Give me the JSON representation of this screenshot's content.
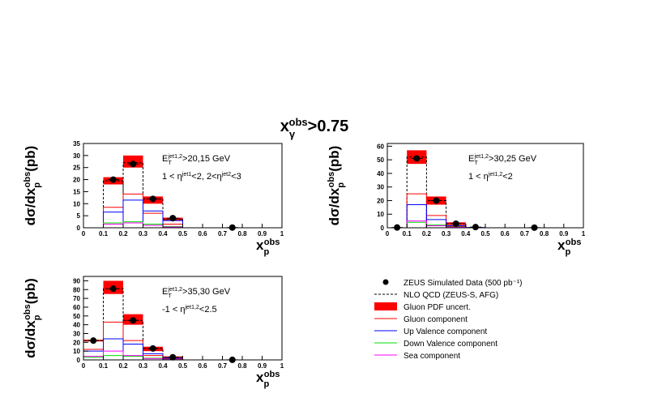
{
  "chart_data": [
    {
      "type": "histogram",
      "title": [
        {
          "text": "x"
        },
        {
          "text": "γ",
          "pos": "sub"
        },
        {
          "text": "obs",
          "pos": "sup"
        },
        {
          "text": ">0.75"
        }
      ],
      "ylabel": [
        {
          "text": "dσ/dx"
        },
        {
          "text": "p",
          "pos": "sub"
        },
        {
          "text": "obs",
          "pos": "sup"
        },
        {
          "text": "(pb)"
        }
      ],
      "xlabel": [
        {
          "text": "x"
        },
        {
          "text": "p",
          "pos": "sub"
        },
        {
          "text": "obs",
          "pos": "sup"
        }
      ],
      "annotations": [
        [
          {
            "text": "E"
          },
          {
            "text": "T",
            "pos": "sub"
          },
          {
            "text": "jet1,2",
            "pos": "sup"
          },
          {
            "text": ">20,15 GeV"
          }
        ],
        [
          {
            "text": "1 < η"
          },
          {
            "text": "jet1",
            "pos": "sup"
          },
          {
            "text": "<2, 2<η"
          },
          {
            "text": "jet2",
            "pos": "sup"
          },
          {
            "text": "<3"
          }
        ]
      ],
      "xlim": [
        0,
        1
      ],
      "xticks": [
        0,
        0.1,
        0.2,
        0.3,
        0.4,
        0.5,
        0.6,
        0.7,
        0.8,
        0.9,
        1
      ],
      "ylim": [
        0,
        35
      ],
      "yticks": [
        0,
        5,
        10,
        15,
        20,
        25,
        30,
        35
      ],
      "bins": [
        0.1,
        0.2,
        0.3,
        0.4,
        0.5
      ],
      "band": {
        "name": "Gluon PDF uncert.",
        "color": "#ff0000",
        "low": [
          18,
          25,
          10,
          3
        ],
        "high": [
          21,
          30,
          13,
          4.2
        ]
      },
      "series": [
        {
          "name": "NLO QCD (ZEUS-S, AFG)",
          "color": "#000000",
          "style": "dashed",
          "values": [
            19.5,
            27,
            12,
            3.6
          ]
        },
        {
          "name": "Gluon component",
          "color": "#ff0000",
          "values": [
            8.5,
            14,
            6,
            1.5
          ]
        },
        {
          "name": "Up Valence component",
          "color": "#0000ff",
          "values": [
            6.5,
            11.5,
            7,
            3
          ]
        },
        {
          "name": "Down Valence component",
          "color": "#00dd00",
          "values": [
            2,
            2.5,
            1.5,
            0.5
          ]
        },
        {
          "name": "Sea component",
          "color": "#ff00ff",
          "values": [
            1.5,
            2,
            1,
            0.3
          ]
        }
      ],
      "points": {
        "name": "ZEUS Simulated Data (500 pb⁻¹)",
        "color": "#000000",
        "x": [
          0.15,
          0.25,
          0.35,
          0.45,
          0.75
        ],
        "values": [
          20,
          26.5,
          12,
          4,
          0.1
        ]
      }
    },
    {
      "type": "histogram",
      "ylabel": [
        {
          "text": "dσ/dx"
        },
        {
          "text": "p",
          "pos": "sub"
        },
        {
          "text": "obs",
          "pos": "sup"
        },
        {
          "text": "(pb)"
        }
      ],
      "xlabel": [
        {
          "text": "x"
        },
        {
          "text": "p",
          "pos": "sub"
        },
        {
          "text": "obs",
          "pos": "sup"
        }
      ],
      "annotations": [
        [
          {
            "text": "E"
          },
          {
            "text": "T",
            "pos": "sub"
          },
          {
            "text": "jet1,2",
            "pos": "sup"
          },
          {
            "text": ">30,25 GeV"
          }
        ],
        [
          {
            "text": "1 < η"
          },
          {
            "text": "jet1,2",
            "pos": "sup"
          },
          {
            "text": "<2"
          }
        ]
      ],
      "xlim": [
        0,
        1
      ],
      "xticks": [
        0,
        0.1,
        0.2,
        0.3,
        0.4,
        0.5,
        0.6,
        0.7,
        0.8,
        0.9,
        1
      ],
      "ylim": [
        0,
        62
      ],
      "yticks": [
        0,
        10,
        20,
        30,
        40,
        50,
        60
      ],
      "bins": [
        0.1,
        0.2,
        0.3,
        0.4,
        0.5
      ],
      "band": {
        "name": "Gluon PDF uncert.",
        "color": "#ff0000",
        "low": [
          47,
          17,
          2,
          0
        ],
        "high": [
          57,
          23,
          4,
          0.6
        ]
      },
      "series": [
        {
          "name": "NLO QCD (ZEUS-S, AFG)",
          "color": "#000000",
          "style": "dashed",
          "values": [
            52,
            20,
            3,
            0.3
          ]
        },
        {
          "name": "Gluon component",
          "color": "#ff0000",
          "values": [
            25,
            9,
            1,
            0.1
          ]
        },
        {
          "name": "Up Valence component",
          "color": "#0000ff",
          "values": [
            17,
            6,
            1.5,
            0.2
          ]
        },
        {
          "name": "Down Valence component",
          "color": "#00dd00",
          "values": [
            4,
            2,
            0.5,
            0.05
          ]
        },
        {
          "name": "Sea component",
          "color": "#ff00ff",
          "values": [
            5,
            1.5,
            0.3,
            0.05
          ]
        }
      ],
      "points": {
        "name": "ZEUS Simulated Data (500 pb⁻¹)",
        "color": "#000000",
        "x": [
          0.05,
          0.15,
          0.25,
          0.35,
          0.45,
          0.75
        ],
        "values": [
          0.2,
          51,
          20,
          3,
          0.5,
          0.1
        ]
      }
    },
    {
      "type": "histogram",
      "ylabel": [
        {
          "text": "dσ/dx"
        },
        {
          "text": "p",
          "pos": "sub"
        },
        {
          "text": "obs",
          "pos": "sup"
        },
        {
          "text": "(pb)"
        }
      ],
      "xlabel": [
        {
          "text": "x"
        },
        {
          "text": "p",
          "pos": "sub"
        },
        {
          "text": "obs",
          "pos": "sup"
        }
      ],
      "annotations": [
        [
          {
            "text": "E"
          },
          {
            "text": "T",
            "pos": "sub"
          },
          {
            "text": "jet1,2",
            "pos": "sup"
          },
          {
            "text": ">35,30 GeV"
          }
        ],
        [
          {
            "text": "-1 < η"
          },
          {
            "text": "jet1,2",
            "pos": "sup"
          },
          {
            "text": "<2.5"
          }
        ]
      ],
      "xlim": [
        0,
        1
      ],
      "xticks": [
        0,
        0.1,
        0.2,
        0.3,
        0.4,
        0.5,
        0.6,
        0.7,
        0.8,
        0.9,
        1
      ],
      "ylim": [
        0,
        95
      ],
      "yticks": [
        0,
        10,
        20,
        30,
        40,
        50,
        60,
        70,
        80,
        90
      ],
      "bins": [
        0,
        0.1,
        0.2,
        0.3,
        0.4,
        0.5
      ],
      "band": {
        "name": "Gluon PDF uncert.",
        "color": "#ff0000",
        "low": [
          21,
          75,
          40,
          10,
          2
        ],
        "high": [
          23,
          90,
          52,
          15,
          4
        ]
      },
      "series": [
        {
          "name": "NLO QCD (ZEUS-S, AFG)",
          "color": "#000000",
          "style": "dashed",
          "values": [
            22,
            81,
            45,
            13,
            3
          ]
        },
        {
          "name": "Gluon component",
          "color": "#ff0000",
          "values": [
            12,
            43,
            22,
            5,
            1
          ]
        },
        {
          "name": "Up Valence component",
          "color": "#0000ff",
          "values": [
            10,
            24,
            18,
            7,
            2
          ]
        },
        {
          "name": "Down Valence component",
          "color": "#00dd00",
          "values": [
            3,
            5,
            4,
            2,
            0.5
          ]
        },
        {
          "name": "Sea component",
          "color": "#ff00ff",
          "values": [
            4,
            10,
            5,
            1.5,
            0.3
          ]
        }
      ],
      "points": {
        "name": "ZEUS Simulated Data (500 pb⁻¹)",
        "color": "#000000",
        "x": [
          0.05,
          0.15,
          0.25,
          0.35,
          0.45,
          0.75
        ],
        "values": [
          22,
          81,
          45,
          13,
          3,
          0.1
        ]
      }
    }
  ]
}
